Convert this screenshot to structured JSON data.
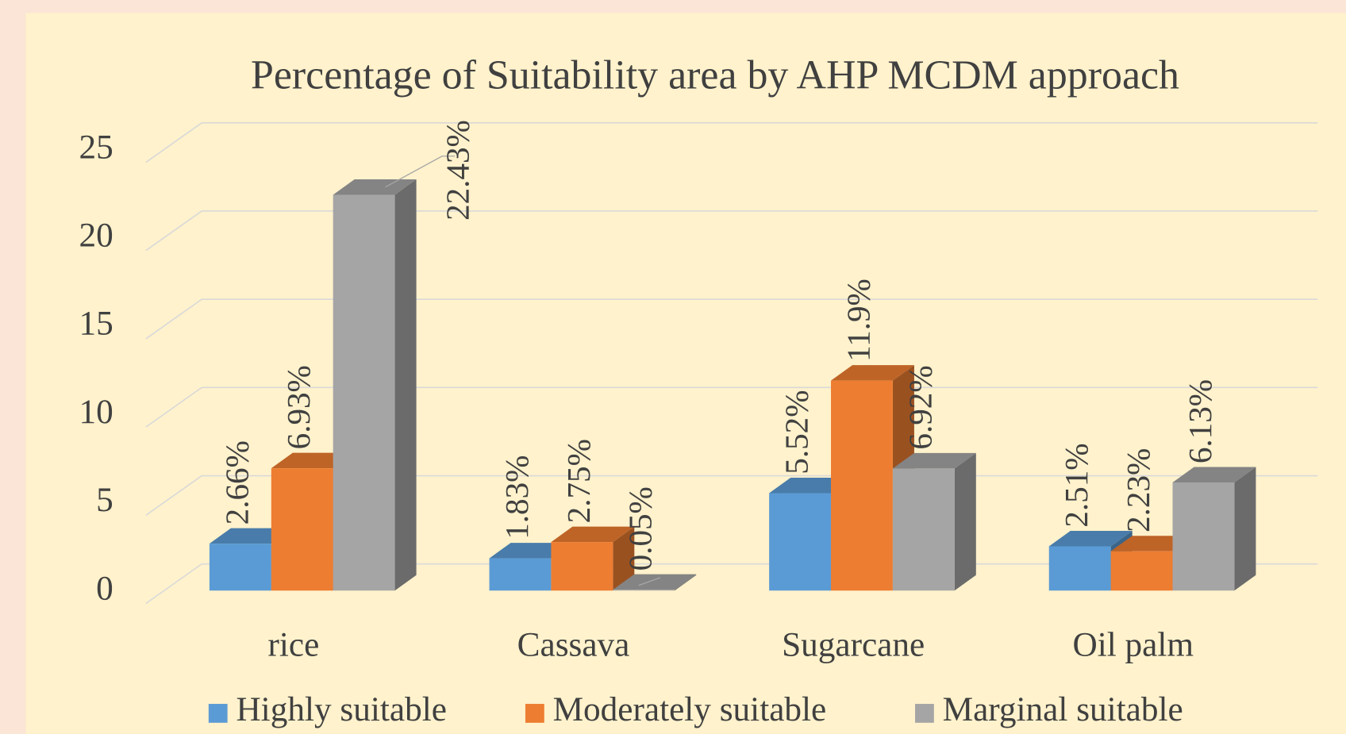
{
  "chart_data": {
    "type": "bar3d",
    "title": "Percentage of Suitability area by AHP MCDM approach",
    "categories": [
      "rice",
      "Cassava",
      "Sugarcane",
      "Oil palm"
    ],
    "series": [
      {
        "name": "Highly suitable",
        "color": "#5b9bd5",
        "values": [
          2.66,
          1.83,
          5.52,
          2.51
        ],
        "value_labels": [
          "2.66%",
          "1.83%",
          "5.52%",
          "2.51%"
        ]
      },
      {
        "name": "Moderately suitable",
        "color": "#ed7d31",
        "values": [
          6.93,
          2.75,
          11.9,
          2.23
        ],
        "value_labels": [
          "6.93%",
          "2.75%",
          "11.9%",
          "2.23%"
        ]
      },
      {
        "name": "Marginal suitable",
        "color": "#a5a5a5",
        "values": [
          22.43,
          0.05,
          6.92,
          6.13
        ],
        "value_labels": [
          "22.43%",
          "0.05%",
          "6.92%",
          "6.13%"
        ]
      }
    ],
    "ylim": [
      0,
      25
    ],
    "yticks": [
      0,
      5,
      10,
      15,
      20,
      25
    ],
    "grid": true,
    "legend": "bottom"
  }
}
